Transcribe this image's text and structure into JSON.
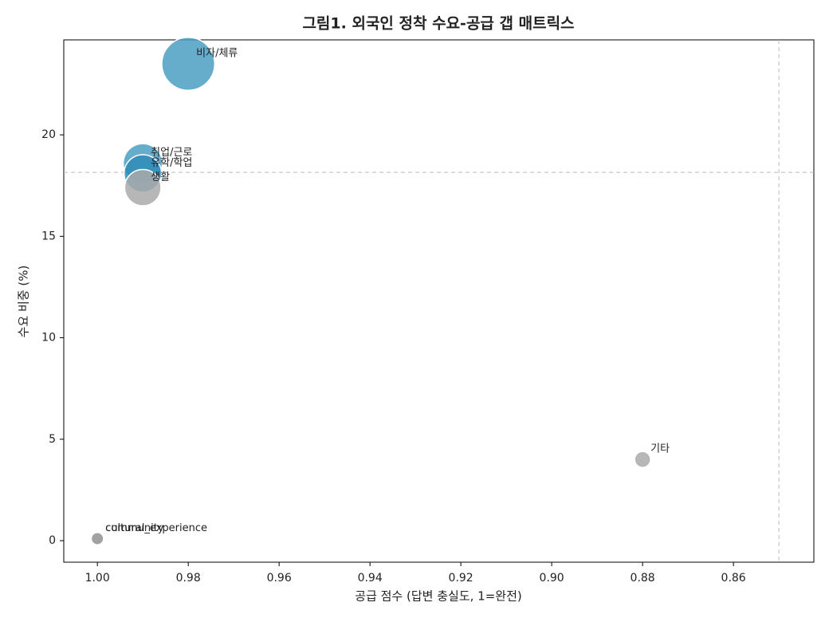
{
  "chart_data": {
    "type": "scatter",
    "title": "그림1. 외국인 정착 수요-공급 갭 매트릭스",
    "x_label": "공급 점수 (답변 충실도, 1=완전)",
    "y_label": "수요 비중 (%)",
    "point_labels": [
      "비자/체류",
      "취업/근로",
      "유학/학업",
      "생활",
      "기타",
      "community",
      "cultural_experience"
    ],
    "x": [
      0.98,
      0.99,
      0.99,
      0.99,
      0.88,
      1.0,
      1.0
    ],
    "values": [
      23.5,
      18.6,
      18.1,
      17.4,
      4.0,
      0.1,
      0.1
    ],
    "sizes": [
      1100,
      600,
      550,
      520,
      100,
      60,
      60
    ],
    "colors": [
      "#4b9dc2",
      "#4b9dc2",
      "#2f8cb8",
      "#aaaaaa",
      "#aaaaaa",
      "#a0a0a0",
      "#a0a0a0"
    ],
    "xlim": [
      1.0074,
      0.8423
    ],
    "ylim": [
      -1.06,
      24.68
    ],
    "xticks": [
      {
        "value": 1.0,
        "label": "1.00"
      },
      {
        "value": 0.98,
        "label": "0.98"
      },
      {
        "value": 0.96,
        "label": "0.96"
      },
      {
        "value": 0.94,
        "label": "0.94"
      },
      {
        "value": 0.92,
        "label": "0.92"
      },
      {
        "value": 0.9,
        "label": "0.90"
      },
      {
        "value": 0.88,
        "label": "0.88"
      },
      {
        "value": 0.86,
        "label": "0.86"
      }
    ],
    "yticks": [
      0,
      5,
      10,
      15,
      20
    ],
    "reference_x": 0.85,
    "reference_y": 18.15
  }
}
